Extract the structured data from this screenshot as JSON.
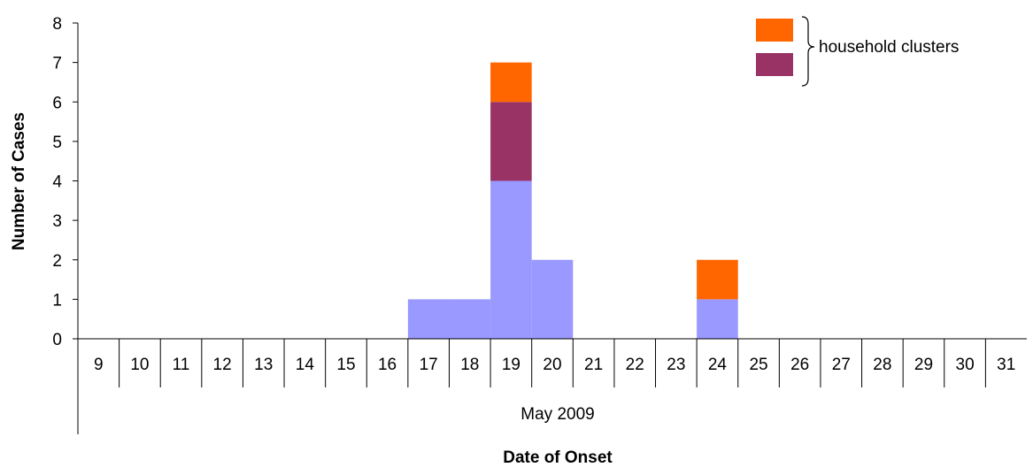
{
  "chart_data": {
    "type": "bar",
    "stacked": true,
    "categories": [
      "9",
      "10",
      "11",
      "12",
      "13",
      "14",
      "15",
      "16",
      "17",
      "18",
      "19",
      "20",
      "21",
      "22",
      "23",
      "24",
      "25",
      "26",
      "27",
      "28",
      "29",
      "30",
      "31"
    ],
    "group_label": "May 2009",
    "series": [
      {
        "values": [
          0,
          0,
          0,
          0,
          0,
          0,
          0,
          0,
          1,
          1,
          4,
          2,
          0,
          0,
          0,
          1,
          0,
          0,
          0,
          0,
          0,
          0,
          0
        ],
        "color": "#9999ff"
      },
      {
        "values": [
          0,
          0,
          0,
          0,
          0,
          0,
          0,
          0,
          0,
          0,
          2,
          0,
          0,
          0,
          0,
          0,
          0,
          0,
          0,
          0,
          0,
          0,
          0
        ],
        "color": "#993366"
      },
      {
        "values": [
          0,
          0,
          0,
          0,
          0,
          0,
          0,
          0,
          0,
          0,
          1,
          0,
          0,
          0,
          0,
          1,
          0,
          0,
          0,
          0,
          0,
          0,
          0
        ],
        "color": "#ff6600"
      }
    ],
    "ylim": [
      0,
      8
    ],
    "yticks": [
      "0",
      "1",
      "2",
      "3",
      "4",
      "5",
      "6",
      "7",
      "8"
    ],
    "xlabel": "Date of Onset",
    "ylabel": "Number of Cases",
    "legend": {
      "label": "household clusters",
      "position": "top-right",
      "swatches": [
        "#ff6600",
        "#993366"
      ]
    },
    "grid": false
  }
}
